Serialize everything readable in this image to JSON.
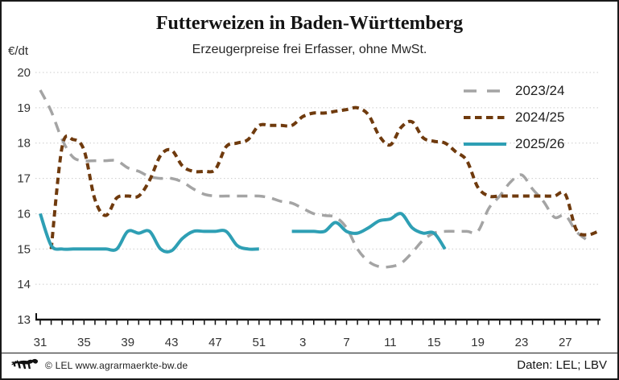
{
  "header": {
    "title": "Futterweizen in Baden-Württemberg",
    "subtitle": "Erzeugerpreise frei Erfasser, ohne MwSt.",
    "y_axis_unit": "€/dt"
  },
  "footer": {
    "logo": "baden-wuerttemberg-lion",
    "copyright": "© LEL www.agrarmaerkte-bw.de",
    "source": "Daten: LEL; LBV"
  },
  "chart_data": {
    "type": "line",
    "x_weeks": [
      31,
      32,
      33,
      34,
      35,
      36,
      37,
      38,
      39,
      40,
      41,
      42,
      43,
      44,
      45,
      46,
      47,
      48,
      49,
      50,
      51,
      52,
      1,
      2,
      3,
      4,
      5,
      6,
      7,
      8,
      9,
      10,
      11,
      12,
      13,
      14,
      15,
      16,
      17,
      18,
      19,
      20,
      21,
      22,
      23,
      24,
      25,
      26,
      27,
      28,
      29,
      30
    ],
    "xtick_labels": [
      "31",
      "35",
      "39",
      "43",
      "47",
      "51",
      "3",
      "7",
      "11",
      "15",
      "19",
      "23",
      "27"
    ],
    "xtick_every": 4,
    "ylim": [
      13,
      20
    ],
    "yticks": [
      13,
      14,
      15,
      16,
      17,
      18,
      19,
      20
    ],
    "grid": "horizontal-dotted",
    "grid_color": "#cccccc",
    "axis_color": "#111111",
    "legend_position": "top-right",
    "series": [
      {
        "name": "2023/24",
        "color": "#a4a4a4",
        "style": "dashed-long",
        "width": 3.5,
        "values": [
          19.5,
          18.9,
          18.1,
          17.6,
          17.5,
          17.5,
          17.5,
          17.5,
          17.3,
          17.2,
          17.05,
          17.0,
          17.0,
          16.9,
          16.7,
          16.55,
          16.5,
          16.5,
          16.5,
          16.5,
          16.5,
          16.45,
          16.35,
          16.3,
          16.15,
          16.0,
          15.95,
          15.9,
          15.6,
          15.0,
          14.65,
          14.5,
          14.5,
          14.6,
          14.9,
          15.25,
          15.45,
          15.5,
          15.5,
          15.5,
          15.5,
          16.15,
          16.5,
          16.9,
          17.1,
          16.7,
          16.35,
          15.9,
          15.95,
          15.5,
          15.25,
          null
        ]
      },
      {
        "name": "2024/25",
        "color": "#6f3a0d",
        "style": "dashed-short",
        "width": 4,
        "values": [
          null,
          15.0,
          17.9,
          18.1,
          17.8,
          16.4,
          15.95,
          16.45,
          16.5,
          16.5,
          16.95,
          17.65,
          17.8,
          17.35,
          17.2,
          17.2,
          17.25,
          17.9,
          18.0,
          18.1,
          18.5,
          18.5,
          18.5,
          18.5,
          18.75,
          18.85,
          18.85,
          18.9,
          18.95,
          19.0,
          18.8,
          18.2,
          17.95,
          18.45,
          18.6,
          18.15,
          18.05,
          18.0,
          17.75,
          17.5,
          16.75,
          16.5,
          16.5,
          16.5,
          16.5,
          16.5,
          16.5,
          16.5,
          16.55,
          15.55,
          15.4,
          15.5
        ]
      },
      {
        "name": "2025/26",
        "color": "#2e9fb4",
        "style": "solid",
        "width": 4,
        "values": [
          16.0,
          15.1,
          15.0,
          15.0,
          15.0,
          15.0,
          15.0,
          15.0,
          15.5,
          15.45,
          15.5,
          15.0,
          14.95,
          15.3,
          15.5,
          15.5,
          15.5,
          15.5,
          15.1,
          15.0,
          15.0,
          null,
          null,
          15.5,
          15.5,
          15.5,
          15.5,
          15.75,
          15.5,
          15.45,
          15.6,
          15.8,
          15.85,
          16.0,
          15.6,
          15.45,
          15.45,
          15.0,
          null,
          null,
          null,
          null,
          null,
          null,
          null,
          null,
          null,
          null,
          null,
          null,
          null,
          null
        ]
      }
    ]
  }
}
